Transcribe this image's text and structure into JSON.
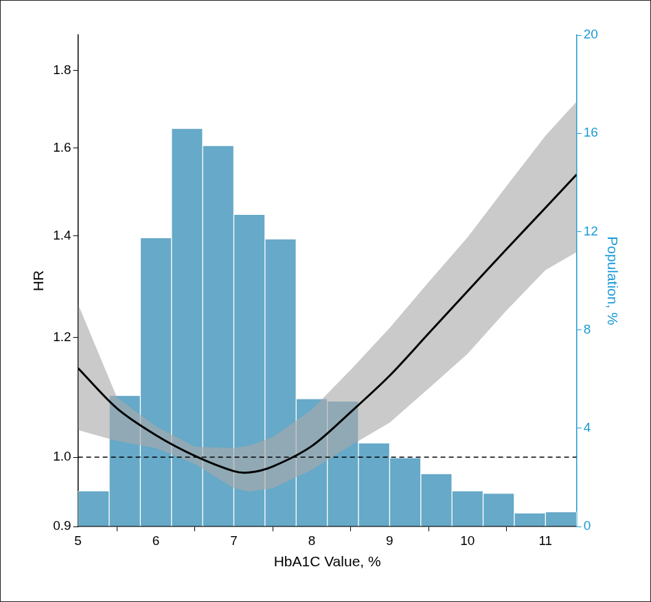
{
  "chart_data": {
    "type": "histogram",
    "x_label": "HbA1C Value, %",
    "y_label": "HR",
    "y2_label": "Population, %",
    "log": "y",
    "grid": false,
    "xlim": [
      5,
      11.4
    ],
    "xticks": [
      5,
      6,
      7,
      8,
      9,
      10,
      11
    ],
    "ylim": [
      0.9,
      1.9
    ],
    "yticks": [
      0.9,
      {
        "value": 1,
        "label": "1.0"
      },
      1.2,
      1.4,
      1.6,
      1.8
    ],
    "y2lim": [
      0,
      20
    ],
    "y2ticks": [
      0,
      4,
      8,
      12,
      16,
      20
    ],
    "bins": [
      5.0,
      5.4,
      5.8,
      6.2,
      6.6,
      7.0,
      7.4,
      7.8,
      8.2,
      8.6,
      9.0,
      9.4,
      9.8,
      10.2,
      10.6,
      11.0,
      11.4
    ],
    "reference_line": 1,
    "series": [
      {
        "type": "bar",
        "axis": "y2",
        "color": "#66a9c8",
        "values": [
          1.45,
          5.33,
          11.75,
          16.2,
          15.5,
          12.7,
          11.7,
          5.2,
          5.1,
          3.4,
          2.8,
          2.15,
          1.45,
          1.35,
          0.55,
          0.6
        ]
      },
      {
        "type": "line",
        "color": "#000000",
        "x": [
          5,
          5.5,
          6,
          6.5,
          7,
          7.2,
          7.5,
          8,
          8.5,
          9,
          9.5,
          10,
          10.5,
          11,
          11.4
        ],
        "values": [
          1.145,
          1.077,
          1.034,
          1.002,
          0.979,
          0.977,
          0.986,
          1.017,
          1.071,
          1.132,
          1.207,
          1.287,
          1.372,
          1.461,
          1.537
        ],
        "ci_lower": [
          1.042,
          1.025,
          1.014,
          0.99,
          0.954,
          0.949,
          0.954,
          0.981,
          1.018,
          1.054,
          1.11,
          1.17,
          1.25,
          1.329,
          1.366
        ],
        "ci_upper": [
          1.262,
          1.095,
          1.048,
          1.016,
          1.014,
          1.018,
          1.031,
          1.075,
          1.142,
          1.217,
          1.305,
          1.397,
          1.51,
          1.63,
          1.717
        ]
      }
    ]
  }
}
